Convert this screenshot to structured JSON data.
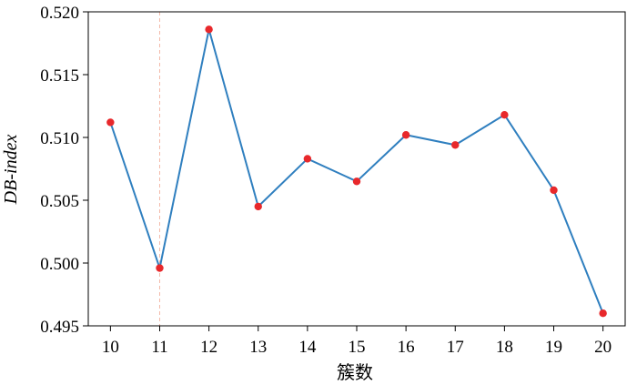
{
  "chart_data": {
    "type": "line",
    "title": "",
    "xlabel": "簇数",
    "ylabel": "DB-index",
    "x": [
      10,
      11,
      12,
      13,
      14,
      15,
      16,
      17,
      18,
      19,
      20
    ],
    "series": [
      {
        "values": [
          0.5112,
          0.4996,
          0.5186,
          0.5045,
          0.5083,
          0.5065,
          0.5102,
          0.5094,
          0.5118,
          0.5058,
          0.496
        ]
      }
    ],
    "xlim": [
      9.55,
      20.45
    ],
    "ylim": [
      0.495,
      0.52
    ],
    "xticks": [
      "10",
      "11",
      "12",
      "13",
      "14",
      "15",
      "16",
      "17",
      "18",
      "19",
      "20"
    ],
    "yticks": [
      "0.495",
      "0.500",
      "0.505",
      "0.510",
      "0.515",
      "0.520"
    ],
    "reference_line_x": 11,
    "grid": false,
    "colors": {
      "line": "#2f7fbf",
      "marker": "#e8282b",
      "reference": "#f4b9a8"
    }
  }
}
